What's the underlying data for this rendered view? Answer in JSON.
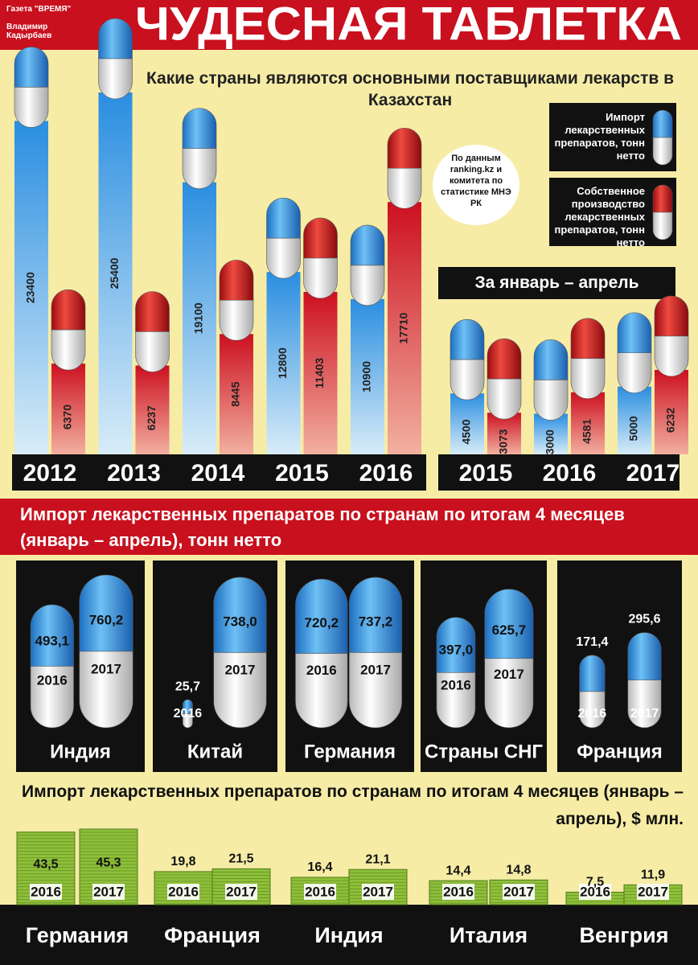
{
  "header": {
    "credit_paper": "Газета \"ВРЕМЯ\"",
    "credit_author": "Владимир Кадырбаев",
    "title": "ЧУДЕСНАЯ ТАБЛЕТКА",
    "subtitle": "Какие страны являются основными поставщиками лекарств в Казахстан",
    "source": "По данным ranking.kz и комитета по статистике МНЭ РК"
  },
  "chart_data": [
    {
      "type": "bar",
      "categories": [
        "2012",
        "2013",
        "2014",
        "2015",
        "2016"
      ],
      "series": [
        {
          "name": "Импорт лекарственных препаратов, тонн нетто",
          "color": "#2a8ee0",
          "values": [
            23400,
            25400,
            19100,
            12800,
            10900
          ]
        },
        {
          "name": "Собственное производство лекарственных препаратов, тонн нетто",
          "color": "#cc1020",
          "values": [
            6370,
            6237,
            8445,
            11403,
            17710
          ]
        }
      ]
    },
    {
      "type": "bar",
      "title": "За январь – апрель",
      "categories": [
        "2015",
        "2016",
        "2017"
      ],
      "series": [
        {
          "color": "#2a8ee0",
          "values": [
            4500,
            3000,
            5000
          ]
        },
        {
          "color": "#cc1020",
          "values": [
            3073,
            4581,
            6232
          ]
        }
      ]
    },
    {
      "type": "pill",
      "title": "Импорт лекарственных препаратов по странам по итогам 4 месяцев (январь – апрель), тонн нетто",
      "categories": [
        "Индия",
        "Китай",
        "Германия",
        "Страны СНГ",
        "Франция"
      ],
      "series": [
        {
          "name": "2016",
          "color": "#2a8ee0",
          "values": [
            493.1,
            25.7,
            720.2,
            397.0,
            171.4
          ],
          "value_labels": [
            "493,1",
            "25,7",
            "720,2",
            "397,0",
            "171,4"
          ]
        },
        {
          "name": "2017",
          "color": "#2a8ee0",
          "values": [
            760.2,
            738.0,
            737.2,
            625.7,
            295.6
          ],
          "value_labels": [
            "760,2",
            "738,0",
            "737,2",
            "625,7",
            "295,6"
          ]
        }
      ]
    },
    {
      "type": "money",
      "title": "Импорт лекарственных препаратов по странам по итогам 4 месяцев (январь – апрель), $ млн.",
      "categories": [
        "Германия",
        "Франция",
        "Индия",
        "Италия",
        "Венгрия"
      ],
      "series": [
        {
          "name": "2016",
          "color": "#8fbf3a",
          "values": [
            43.5,
            19.8,
            16.4,
            14.4,
            7.5
          ],
          "value_labels": [
            "43,5",
            "19,8",
            "16,4",
            "14,4",
            "7,5"
          ]
        },
        {
          "name": "2017",
          "color": "#8fbf3a",
          "values": [
            45.3,
            21.5,
            21.1,
            14.8,
            11.9
          ],
          "value_labels": [
            "45,3",
            "21,5",
            "21,1",
            "14,8",
            "11,9"
          ]
        }
      ]
    }
  ]
}
